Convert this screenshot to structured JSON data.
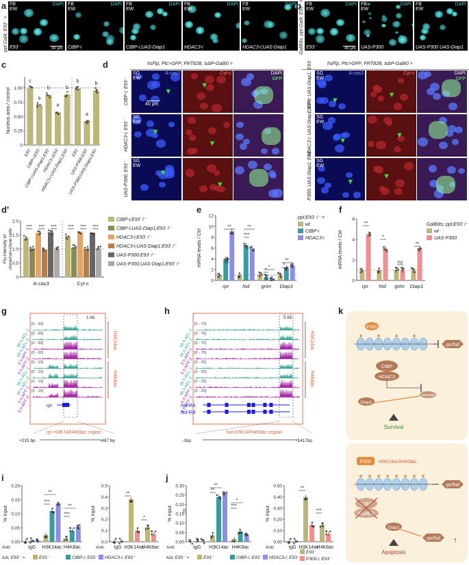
{
  "labels": {
    "a": "a",
    "b": "b",
    "c": "c",
    "d": "d",
    "d2": "d'",
    "e": "e",
    "f": "f",
    "g": "g",
    "h": "h",
    "i": "i",
    "j": "j",
    "k": "k"
  },
  "panel_a": {
    "genotype": "ppl-Gal4; E93⁻ >",
    "tiles": [
      {
        "tl": "FB",
        "tl2": "EW",
        "dapi": "DAPI",
        "bottom": "E93⁻",
        "scale": "40 μm"
      },
      {
        "tl": "FB",
        "tl2": "EW",
        "dapi": "DAPI",
        "bottom": "CtBP-i",
        "scale": ""
      },
      {
        "tl": "FB",
        "tl2": "EW",
        "dapi": "DAPI",
        "bottom": "CtBP-i;UAS-Diap1",
        "scale": ""
      },
      {
        "tl": "FB",
        "tl2": "EW",
        "dapi": "DAPI",
        "bottom": "HDAC3-i",
        "scale": ""
      },
      {
        "tl": "FB",
        "tl2": "EW",
        "dapi": "DAPI",
        "bottom": "HDAC3-i;UAS-Diap1",
        "scale": ""
      }
    ]
  },
  "panel_b": {
    "genotype": "Gal80ts; ppl-Gal4; E93⁻ >",
    "tiles": [
      {
        "tl": "FB",
        "tl2": "EW",
        "dapi": "DAPI",
        "bottom": "E93⁻",
        "scale": "40 μm"
      },
      {
        "tl": "FB",
        "tl2": "EW",
        "dapi": "DAPI",
        "bottom": "UAS-P300",
        "scale": ""
      },
      {
        "tl": "FB",
        "tl2": "EW",
        "dapi": "DAPI",
        "bottom": "UAS-P300 UAS-Diap1",
        "scale": ""
      }
    ]
  },
  "panel_d": {
    "header_left": "hsFlp; Ptc>GFP; FRT82B, tubP-Gal80 >",
    "header_right": "hsFlp; Ptc>GFP; FRT82B, tubP-Gal80 >",
    "scale": "40 μm",
    "channels": [
      "A-cas3",
      "Cyt-c",
      "DAPI",
      "GFP"
    ],
    "rows_left": [
      "CtBP-i; E93⁻",
      "HDAC3-i; E93⁻",
      "UAS-P300; E93⁻"
    ],
    "rows_right": [
      "CtBP-i; UAS-Diap1; E93⁻",
      "HDAC3-i; UAS-Diap1; E93⁻",
      "P300; UAS-Diap1; E93⁻"
    ],
    "tissue": "SG",
    "tissue2": "EW"
  },
  "chart_data": [
    {
      "id": "c",
      "type": "bar",
      "ylabel": "Nucleus area / control",
      "ylim": [
        0,
        1.2
      ],
      "yticks": [
        "0",
        "0.25",
        "0.50",
        "0.75",
        "1.00"
      ],
      "categories": [
        "E93⁻",
        "CtBP-i;E93⁻",
        "CtBP-i;UAS-Diap1;E93⁻",
        "HDAC3-i;E93⁻",
        "HDAC3-i;UAS-Diap1;E93⁻",
        "E93⁻",
        "UAS-P300;E93⁻",
        "UAS-P300;UAS-Diap1;E93⁻"
      ],
      "values": [
        1.0,
        0.7,
        0.88,
        0.58,
        0.89,
        1.0,
        0.42,
        0.96
      ],
      "letters": [
        "c",
        "a",
        "b",
        "a",
        "b",
        "b",
        "a",
        "b"
      ]
    },
    {
      "id": "d2",
      "type": "bar",
      "ylabel": "Flu-intensity of clone/non-clone cells",
      "ylim": [
        0,
        2.0
      ],
      "yticks": [
        "0",
        "0.5",
        "1.0",
        "1.5",
        "2.0"
      ],
      "groups": [
        "A-cas3",
        "Cyt-c"
      ],
      "series": [
        {
          "name": "CtBP-i;E93⁻/⁻",
          "color": "#bdb67a",
          "values": [
            1.4,
            1.45
          ]
        },
        {
          "name": "CtBP-i;UAS-Diap1;E93⁻/⁻",
          "color": "#8c8a52",
          "values": [
            1.02,
            1.05
          ]
        },
        {
          "name": "HDAC3-i;E93⁻/⁻",
          "color": "#e3a468",
          "values": [
            1.58,
            1.62
          ]
        },
        {
          "name": "HDAC3-i;UAS-Diap1;E93⁻/⁻",
          "color": "#b67d48",
          "values": [
            0.98,
            1.01
          ]
        },
        {
          "name": "UAS-P300;E93⁻/⁻",
          "color": "#666666",
          "values": [
            1.6,
            1.58
          ]
        },
        {
          "name": "UAS-P300;UAS-Diap1;E93⁻/⁻",
          "color": "#aaaaaa",
          "values": [
            1.0,
            1.02
          ]
        }
      ],
      "sig": [
        "***",
        "***",
        "***",
        "***",
        "***",
        "***"
      ]
    },
    {
      "id": "e",
      "type": "bar",
      "title": "ppl;E93⁻/⁻ >",
      "ylabel": "mRNA levels / Ctrl",
      "ylim": [
        0,
        12
      ],
      "yticks": [
        "0",
        "2",
        "4",
        "6",
        "8",
        "10",
        "12"
      ],
      "categories": [
        "rpr",
        "hid",
        "grim",
        "Diap1"
      ],
      "series": [
        {
          "name": "wt",
          "color": "#bdb67a",
          "values": [
            1.0,
            1.0,
            1.0,
            1.0
          ]
        },
        {
          "name": "CtBP-i",
          "color": "#3b9a9c",
          "values": [
            3.9,
            6.5,
            0.6,
            2.3
          ]
        },
        {
          "name": "HDAC3-i",
          "color": "#8b8de6",
          "values": [
            9.1,
            5.9,
            0.4,
            2.8
          ]
        }
      ],
      "sig": [
        "***",
        "**",
        "***",
        "**",
        "*",
        "*",
        "*",
        "**"
      ]
    },
    {
      "id": "f",
      "type": "bar",
      "title": "Gal80ts; ppl;E93⁻/⁻ >",
      "ylabel": "mRNA levels / Ctrl",
      "ylim": [
        0,
        6
      ],
      "yticks": [
        "0",
        "2",
        "4",
        "6"
      ],
      "categories": [
        "rpr",
        "hid",
        "grim",
        "Diap1"
      ],
      "series": [
        {
          "name": "wt",
          "color": "#bdb67a",
          "values": [
            1.0,
            1.0,
            1.0,
            1.0
          ]
        },
        {
          "name": "UAS-P300",
          "color": "#ef8f8f",
          "values": [
            4.5,
            3.1,
            1.0,
            3.1
          ]
        }
      ],
      "sig": [
        "**",
        "*",
        "ns",
        "**"
      ]
    },
    {
      "id": "i1",
      "type": "bar",
      "ylabel": "% Input",
      "ylim": [
        0,
        0.2
      ],
      "yticks": [
        "0.00",
        "0.05",
        "0.10",
        "0.15",
        "0.20"
      ],
      "categories": [
        "IgG",
        "H3K14ac",
        "H4K8ac"
      ],
      "series": [
        {
          "name": "E93⁻",
          "color": "#bdb67a",
          "values": [
            0.002,
            0.025,
            0.012
          ]
        },
        {
          "name": "CtBP-i; E93⁻",
          "color": "#3b9a9c",
          "values": [
            0.004,
            0.11,
            0.04
          ]
        },
        {
          "name": "HDAC3-i; E93⁻",
          "color": "#8b8de6",
          "values": [
            0.004,
            0.135,
            0.055
          ]
        }
      ],
      "sig": [
        "***",
        "**",
        "***",
        "**"
      ]
    },
    {
      "id": "i2",
      "type": "bar",
      "ylabel": "% Input",
      "ylim": [
        0,
        0.5
      ],
      "yticks": [
        "0.0",
        "0.1",
        "0.2",
        "0.3",
        "0.4",
        "0.5"
      ],
      "categories": [
        "IgG",
        "H3K14ac",
        "H4K8ac"
      ],
      "series": [
        {
          "name": "E93⁻",
          "color": "#bdb67a",
          "values": [
            0.005,
            0.38,
            0.13
          ]
        },
        {
          "name": "P300-i; E93⁻",
          "color": "#ef8f8f",
          "values": [
            0.005,
            0.1,
            0.07
          ]
        }
      ],
      "sig": [
        "**",
        "*"
      ]
    },
    {
      "id": "j1",
      "type": "bar",
      "ylabel": "% Input",
      "ylim": [
        0,
        0.3
      ],
      "yticks": [
        "0.00",
        "0.05",
        "0.10",
        "0.15",
        "0.20",
        "0.25",
        "0.30"
      ],
      "categories": [
        "IgG",
        "H3K14ac",
        "H4K8ac"
      ],
      "series": [
        {
          "name": "E93⁻",
          "color": "#bdb67a",
          "values": [
            0.002,
            0.035,
            0.015
          ]
        },
        {
          "name": "CtBP-i; E93⁻",
          "color": "#3b9a9c",
          "values": [
            0.003,
            0.24,
            0.055
          ]
        },
        {
          "name": "HDAC3-i; E93⁻",
          "color": "#8b8de6",
          "values": [
            0.003,
            0.26,
            0.04
          ]
        }
      ],
      "sig": [
        "**",
        "**",
        "***",
        "*"
      ]
    },
    {
      "id": "j2",
      "type": "bar",
      "ylabel": "% Input",
      "ylim": [
        0,
        0.5
      ],
      "yticks": [
        "0.00",
        "0.10",
        "0.20",
        "0.30",
        "0.40",
        "0.50"
      ],
      "categories": [
        "IgG",
        "H3K14ac",
        "H4K8ac"
      ],
      "series": [
        {
          "name": "E93⁻",
          "color": "#bdb67a",
          "values": [
            0.005,
            0.4,
            0.15
          ]
        },
        {
          "name": "P300-i; E93⁻",
          "color": "#ef8f8f",
          "values": [
            0.005,
            0.15,
            0.07
          ]
        }
      ],
      "sig": [
        "**",
        "***"
      ]
    }
  ],
  "panel_g": {
    "scale": "1 kb",
    "gene": "rpr",
    "tracks": [
      "96 h AEL-1",
      "96 h AEL-2",
      "6 h APF-1",
      "6 h APF-2",
      "96 h AEL-1",
      "96 h AEL-2",
      "6 h APF-1",
      "6 h APF-2"
    ],
    "ranges": [
      "[0 - 60]",
      "[0 - 60]",
      "[0 - 60]",
      "[0 - 60]",
      "[0 - 10]",
      "[0 - 10]",
      "[0 - 10]",
      "[0 - 10]"
    ],
    "marks": [
      "H3K14ac",
      "H4K8ac"
    ],
    "region": "rpr H3K14/H4K8ac region",
    "left": "+215 bp",
    "right": "-487 bp"
  },
  "panel_h": {
    "scale": "5 kb",
    "genes": [
      "hid-RA",
      "hid-RB"
    ],
    "tracks": [
      "96 h AEL-1",
      "96 h AEL-2",
      "6 h APF-1",
      "6 h APF-2",
      "96 h AEL-1",
      "96 h AEL-2",
      "6 h APF-1",
      "6 h APF-2"
    ],
    "ranges": [
      "[0 - 70]",
      "[0 - 70]",
      "[0 - 70]",
      "[0 - 70]",
      "[0 - 20]",
      "[0 - 20]",
      "[0 - 20]",
      "[0 - 20]"
    ],
    "marks": [
      "H3K14ac",
      "H4K8ac"
    ],
    "region": "hid H3K14/H4K8ac region",
    "left": "-1bp",
    "right": "-1417bp"
  },
  "chip_footer": {
    "anti": "Anti:",
    "i_left": "tub; E93⁻ >",
    "i_items": [
      "E93⁻",
      "CtBP-i; E93⁻",
      "HDAC3-i; E93⁻"
    ],
    "j_left": "tub; E93⁻ >",
    "j_items": [
      "E93⁻",
      "CtBP-i; E93⁻",
      "HDAC3-i; E93⁻"
    ],
    "right_items": [
      "E93⁻",
      "P300-i; E93⁻"
    ]
  },
  "panel_k": {
    "top": {
      "p300": "P300",
      "ctbp": "CtBP",
      "hdac3": "HDAC3",
      "target": "rpr/hid",
      "diap1": "Diap1",
      "caspase": "caspase",
      "outcome": "Survival"
    },
    "bottom": {
      "p300": "P300",
      "mark": "H3K14ac/H4K8ac",
      "ctbp": "CtBP",
      "hdac3": "HDAC3",
      "target": "rpr/hid",
      "target2": "rpr/hid",
      "diap1": "Diap1",
      "outcome": "Apoptosis"
    }
  }
}
